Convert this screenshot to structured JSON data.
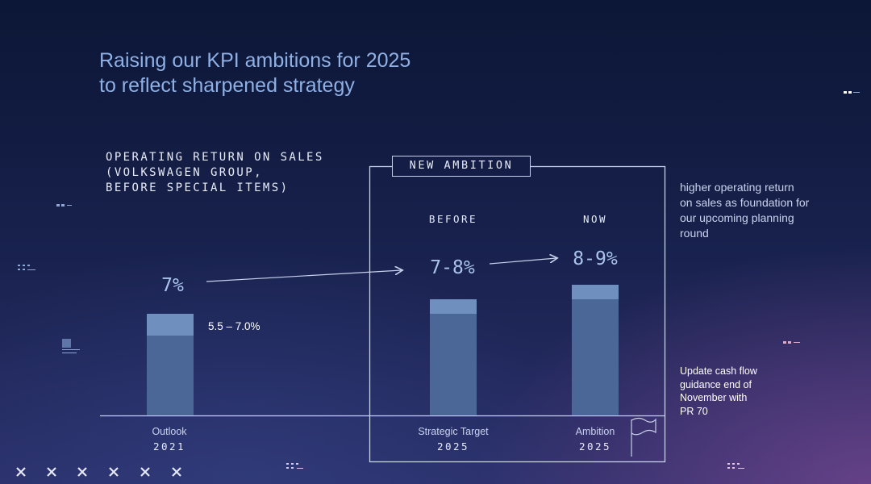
{
  "header": {
    "title_line1": "Raising our KPI ambitions for 2025",
    "title_line2": "to reflect sharpened strategy"
  },
  "metric_title": {
    "line1": "OPERATING RETURN ON SALES",
    "line2": "(VOLKSWAGEN GROUP,",
    "line3": "BEFORE SPECIAL ITEMS)"
  },
  "new_ambition_label": "NEW AMBITION",
  "column_headers": {
    "before": "BEFORE",
    "now": "NOW"
  },
  "notes": {
    "planning_line1": "higher operating return",
    "planning_line2": "on sales as foundation for",
    "planning_line3": "our upcoming planning",
    "planning_line4": "round",
    "cashflow_line1": "Update cash flow",
    "cashflow_line2": "guidance end of",
    "cashflow_line3": "November with",
    "cashflow_line4": "PR 70"
  },
  "colors": {
    "bar_base": "#4a6797",
    "bar_range": "#6f8fbf",
    "accent_text": "#a9c3ec",
    "line": "#c6d0ea"
  },
  "chart_data": {
    "type": "bar",
    "title": "OPERATING RETURN ON SALES (VOLKSWAGEN GROUP, BEFORE SPECIAL ITEMS)",
    "categories": [
      {
        "label": "Outlook",
        "year": "2021"
      },
      {
        "label": "Strategic Target",
        "year": "2025"
      },
      {
        "label": "Ambition",
        "year": "2025"
      }
    ],
    "series": [
      {
        "values": [
          [
            5.5,
            7.0
          ],
          [
            7.0,
            8.0
          ],
          [
            8.0,
            9.0
          ]
        ]
      }
    ],
    "headline_labels": [
      "7%",
      "7-8%",
      "8-9%"
    ],
    "range_labels": [
      "5.5 – 7.0%",
      "",
      ""
    ],
    "ylim": [
      0,
      9
    ],
    "grid": false,
    "legend": "none"
  }
}
